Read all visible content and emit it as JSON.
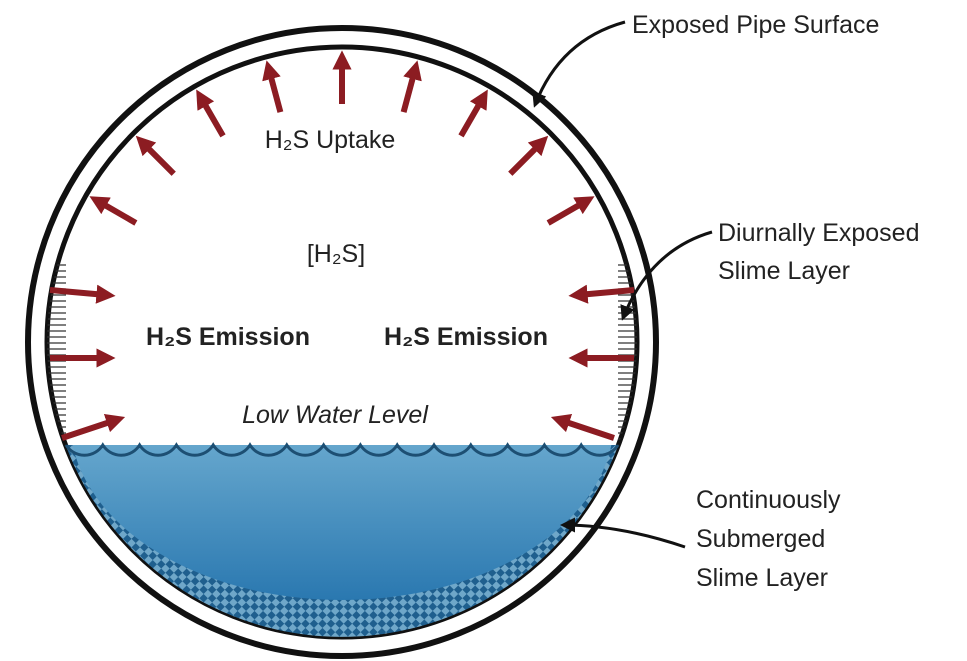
{
  "labels": {
    "uptake": "H₂S Uptake",
    "concentration": "[H₂S]",
    "emission_left": "H₂S Emission",
    "emission_right": "H₂S Emission",
    "water_level": "Low Water Level",
    "exposed_pipe": [
      "Exposed Pipe Surface"
    ],
    "diurnal": [
      "Diurnally Exposed",
      "Slime Layer"
    ],
    "submerged": [
      "Continuously",
      "Submerged",
      "Slime Layer"
    ]
  }
}
